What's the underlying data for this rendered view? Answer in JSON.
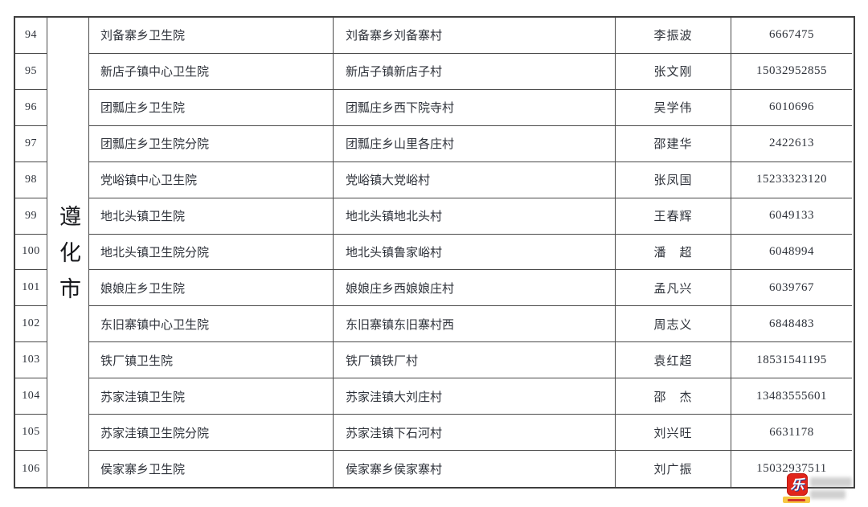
{
  "table": {
    "region_label": "遵化市",
    "rows": [
      {
        "num": "94",
        "institution": "刘备寨乡卫生院",
        "address": "刘备寨乡刘备寨村",
        "contact": "李振波",
        "phone": "6667475"
      },
      {
        "num": "95",
        "institution": "新店子镇中心卫生院",
        "address": "新店子镇新店子村",
        "contact": "张文刚",
        "phone": "15032952855"
      },
      {
        "num": "96",
        "institution": "团瓢庄乡卫生院",
        "address": "团瓢庄乡西下院寺村",
        "contact": "吴学伟",
        "phone": "6010696"
      },
      {
        "num": "97",
        "institution": "团瓢庄乡卫生院分院",
        "address": "团瓢庄乡山里各庄村",
        "contact": "邵建华",
        "phone": "2422613"
      },
      {
        "num": "98",
        "institution": "党峪镇中心卫生院",
        "address": "党峪镇大党峪村",
        "contact": "张凤国",
        "phone": "15233323120"
      },
      {
        "num": "99",
        "institution": "地北头镇卫生院",
        "address": "地北头镇地北头村",
        "contact": "王春辉",
        "phone": "6049133"
      },
      {
        "num": "100",
        "institution": "地北头镇卫生院分院",
        "address": "地北头镇鲁家峪村",
        "contact": "潘　超",
        "phone": "6048994"
      },
      {
        "num": "101",
        "institution": "娘娘庄乡卫生院",
        "address": "娘娘庄乡西娘娘庄村",
        "contact": "孟凡兴",
        "phone": "6039767"
      },
      {
        "num": "102",
        "institution": "东旧寨镇中心卫生院",
        "address": "东旧寨镇东旧寨村西",
        "contact": "周志义",
        "phone": "6848483"
      },
      {
        "num": "103",
        "institution": "铁厂镇卫生院",
        "address": "铁厂镇铁厂村",
        "contact": "袁红超",
        "phone": "18531541195"
      },
      {
        "num": "104",
        "institution": "苏家洼镇卫生院",
        "address": "苏家洼镇大刘庄村",
        "contact": "邵　杰",
        "phone": "13483555601"
      },
      {
        "num": "105",
        "institution": "苏家洼镇卫生院分院",
        "address": "苏家洼镇下石河村",
        "contact": "刘兴旺",
        "phone": "6631178"
      },
      {
        "num": "106",
        "institution": "侯家寨乡卫生院",
        "address": "侯家寨乡侯家寨村",
        "contact": "刘广振",
        "phone": "15032937511"
      }
    ]
  },
  "watermark": {
    "logo_char": "乐"
  },
  "colors": {
    "border": "#4a4a4a",
    "text": "#2e323a",
    "logo_red": "#e1251b",
    "banner_yellow": "#f7c743"
  }
}
